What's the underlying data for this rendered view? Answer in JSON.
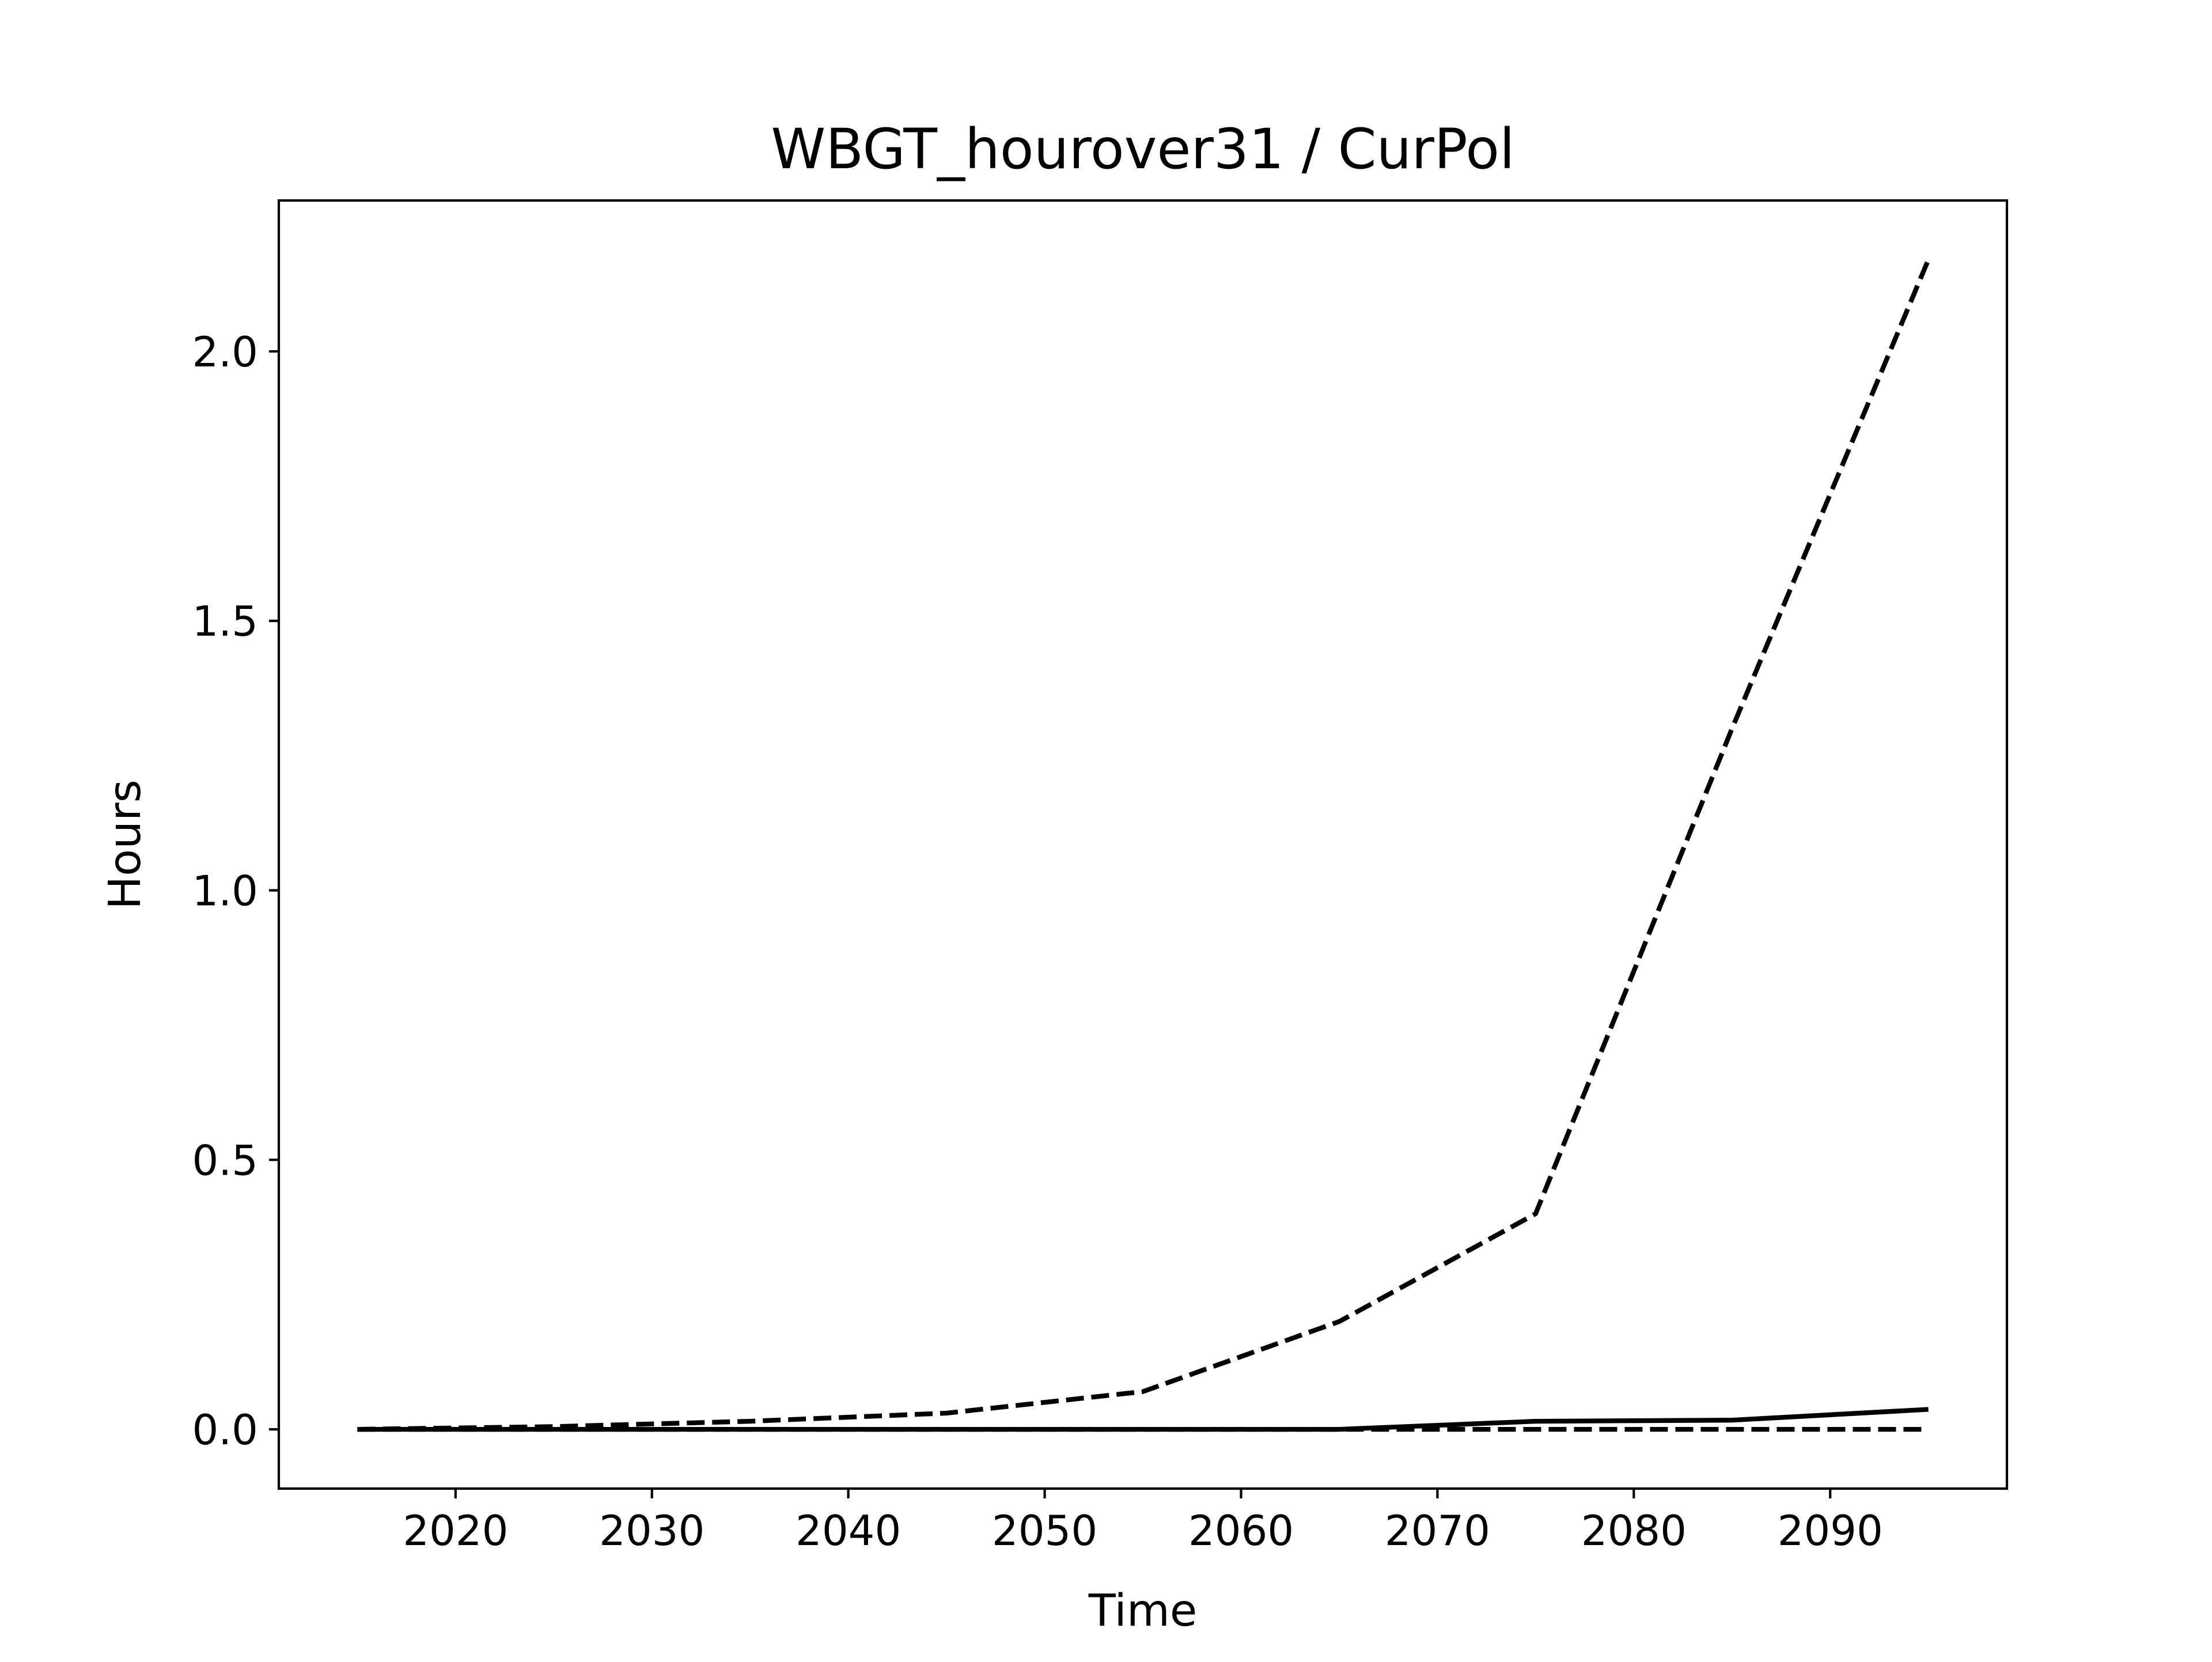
{
  "chart_data": {
    "type": "line",
    "title": "WBGT_hourover31 / CurPol",
    "xlabel": "Time",
    "ylabel": "Hours",
    "xlim": [
      2011,
      2099
    ],
    "ylim": [
      -0.11,
      2.28
    ],
    "xticks": [
      2020,
      2030,
      2040,
      2050,
      2060,
      2070,
      2080,
      2090
    ],
    "yticks": [
      0.0,
      0.5,
      1.0,
      1.5,
      2.0
    ],
    "ytick_labels": [
      "0.0",
      "0.5",
      "1.0",
      "1.5",
      "2.0"
    ],
    "grid": false,
    "legend": "none",
    "colors": {
      "line": "#000000",
      "frame": "#000000",
      "background": "#ffffff"
    },
    "series": [
      {
        "style": "dashed",
        "x": [
          2015,
          2025,
          2035,
          2045,
          2055,
          2065,
          2075,
          2085,
          2095
        ],
        "y": [
          0.0,
          0.005,
          0.015,
          0.03,
          0.07,
          0.2,
          0.4,
          1.3,
          2.17
        ]
      },
      {
        "style": "solid",
        "x": [
          2015,
          2025,
          2035,
          2045,
          2055,
          2065,
          2075,
          2085,
          2095
        ],
        "y": [
          0.0,
          0.0,
          0.0,
          0.0,
          0.0,
          0.0,
          0.015,
          0.017,
          0.037
        ]
      },
      {
        "style": "dashed",
        "x": [
          2015,
          2025,
          2035,
          2045,
          2055,
          2065,
          2075,
          2085,
          2095
        ],
        "y": [
          0.0,
          0.0,
          0.0,
          0.0,
          0.0,
          0.0,
          0.0,
          0.0,
          0.0
        ]
      }
    ]
  }
}
